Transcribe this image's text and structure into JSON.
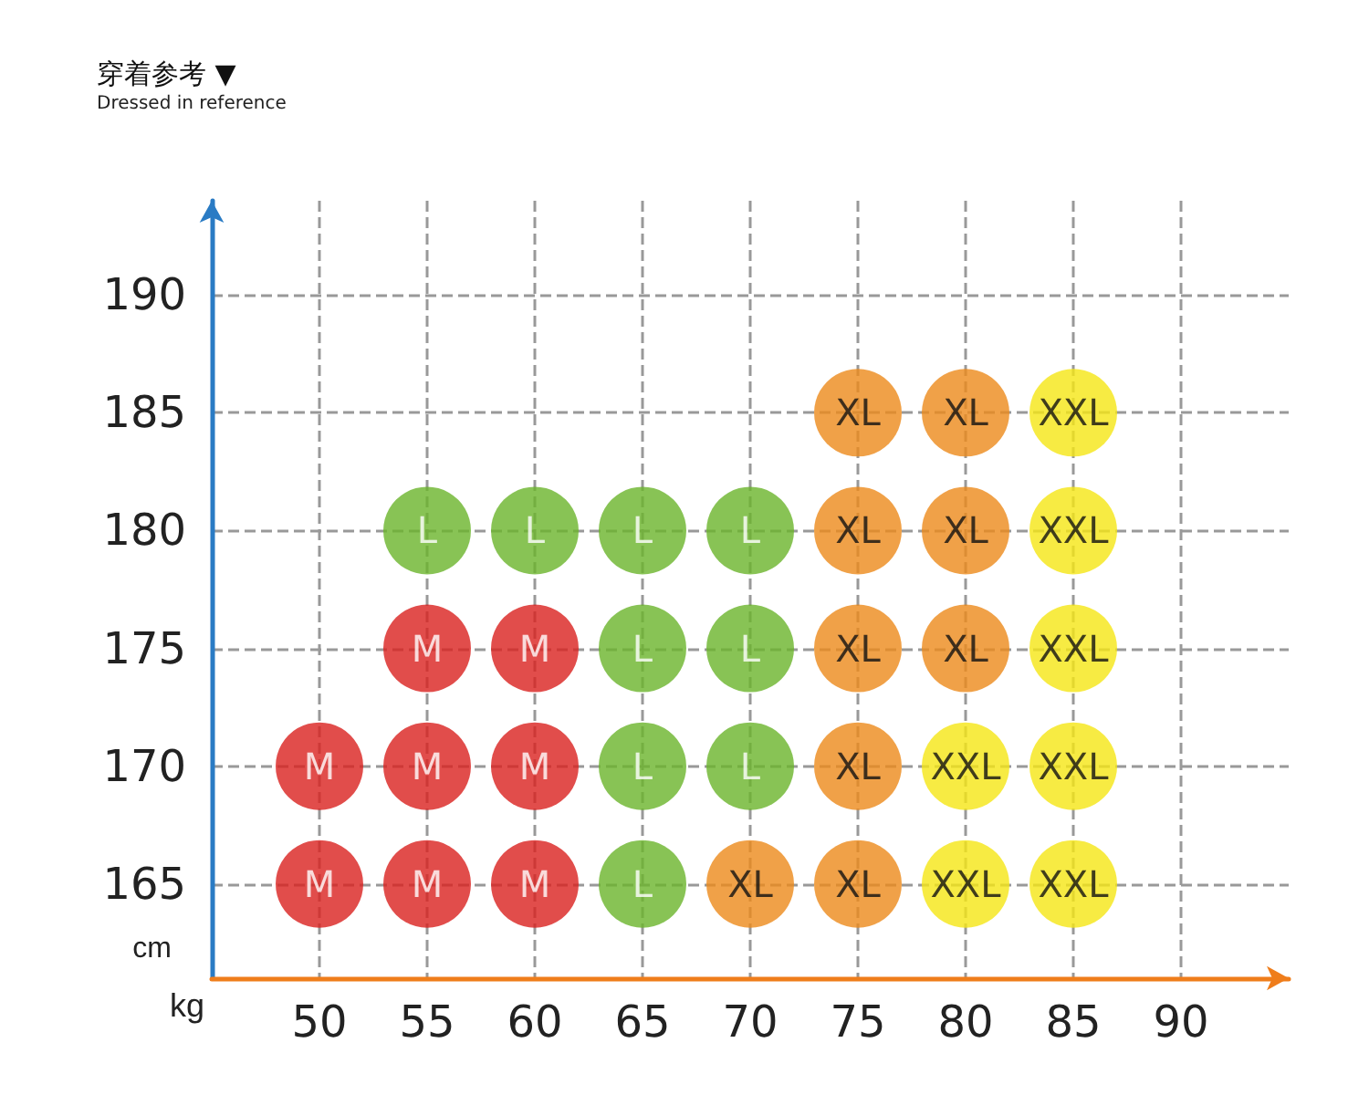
{
  "chart_data": {
    "type": "scatter",
    "title": "穿着参考 ▼",
    "subtitle": "Dressed in reference",
    "xlabel": "kg",
    "ylabel": "cm",
    "xlim": [
      45,
      95
    ],
    "xticks": [
      50,
      55,
      60,
      65,
      70,
      75,
      80,
      85,
      90
    ],
    "ylim": [
      161,
      194
    ],
    "yticks": [
      165,
      170,
      175,
      180,
      185,
      190
    ],
    "grid": true,
    "marker": "circle",
    "series": [
      {
        "color": "#d9201e",
        "x": [
          55,
          60,
          50,
          55,
          60,
          50,
          55,
          60
        ],
        "values": [
          175,
          175,
          170,
          170,
          170,
          165,
          165,
          165
        ],
        "value_labels": [
          "M",
          "M",
          "M",
          "M",
          "M",
          "M",
          "M",
          "M"
        ]
      },
      {
        "color": "#6ab42a",
        "x": [
          55,
          60,
          65,
          70,
          65,
          70,
          65,
          70,
          65
        ],
        "values": [
          180,
          180,
          180,
          180,
          175,
          175,
          170,
          170,
          165
        ],
        "value_labels": [
          "L",
          "L",
          "L",
          "L",
          "L",
          "L",
          "L",
          "L",
          "L"
        ]
      },
      {
        "color": "#ec8a1a",
        "x": [
          75,
          80,
          75,
          80,
          75,
          80,
          75,
          70,
          75
        ],
        "values": [
          185,
          185,
          180,
          180,
          175,
          175,
          170,
          165,
          165
        ],
        "value_labels": [
          "XL",
          "XL",
          "XL",
          "XL",
          "XL",
          "XL",
          "XL",
          "XL",
          "XL"
        ]
      },
      {
        "color": "#f5e614",
        "x": [
          85,
          85,
          85,
          80,
          85,
          80,
          85
        ],
        "values": [
          185,
          180,
          175,
          170,
          170,
          165,
          165
        ],
        "value_labels": [
          "XXL",
          "XXL",
          "XXL",
          "XXL",
          "XXL",
          "XXL",
          "XXL"
        ]
      }
    ]
  }
}
